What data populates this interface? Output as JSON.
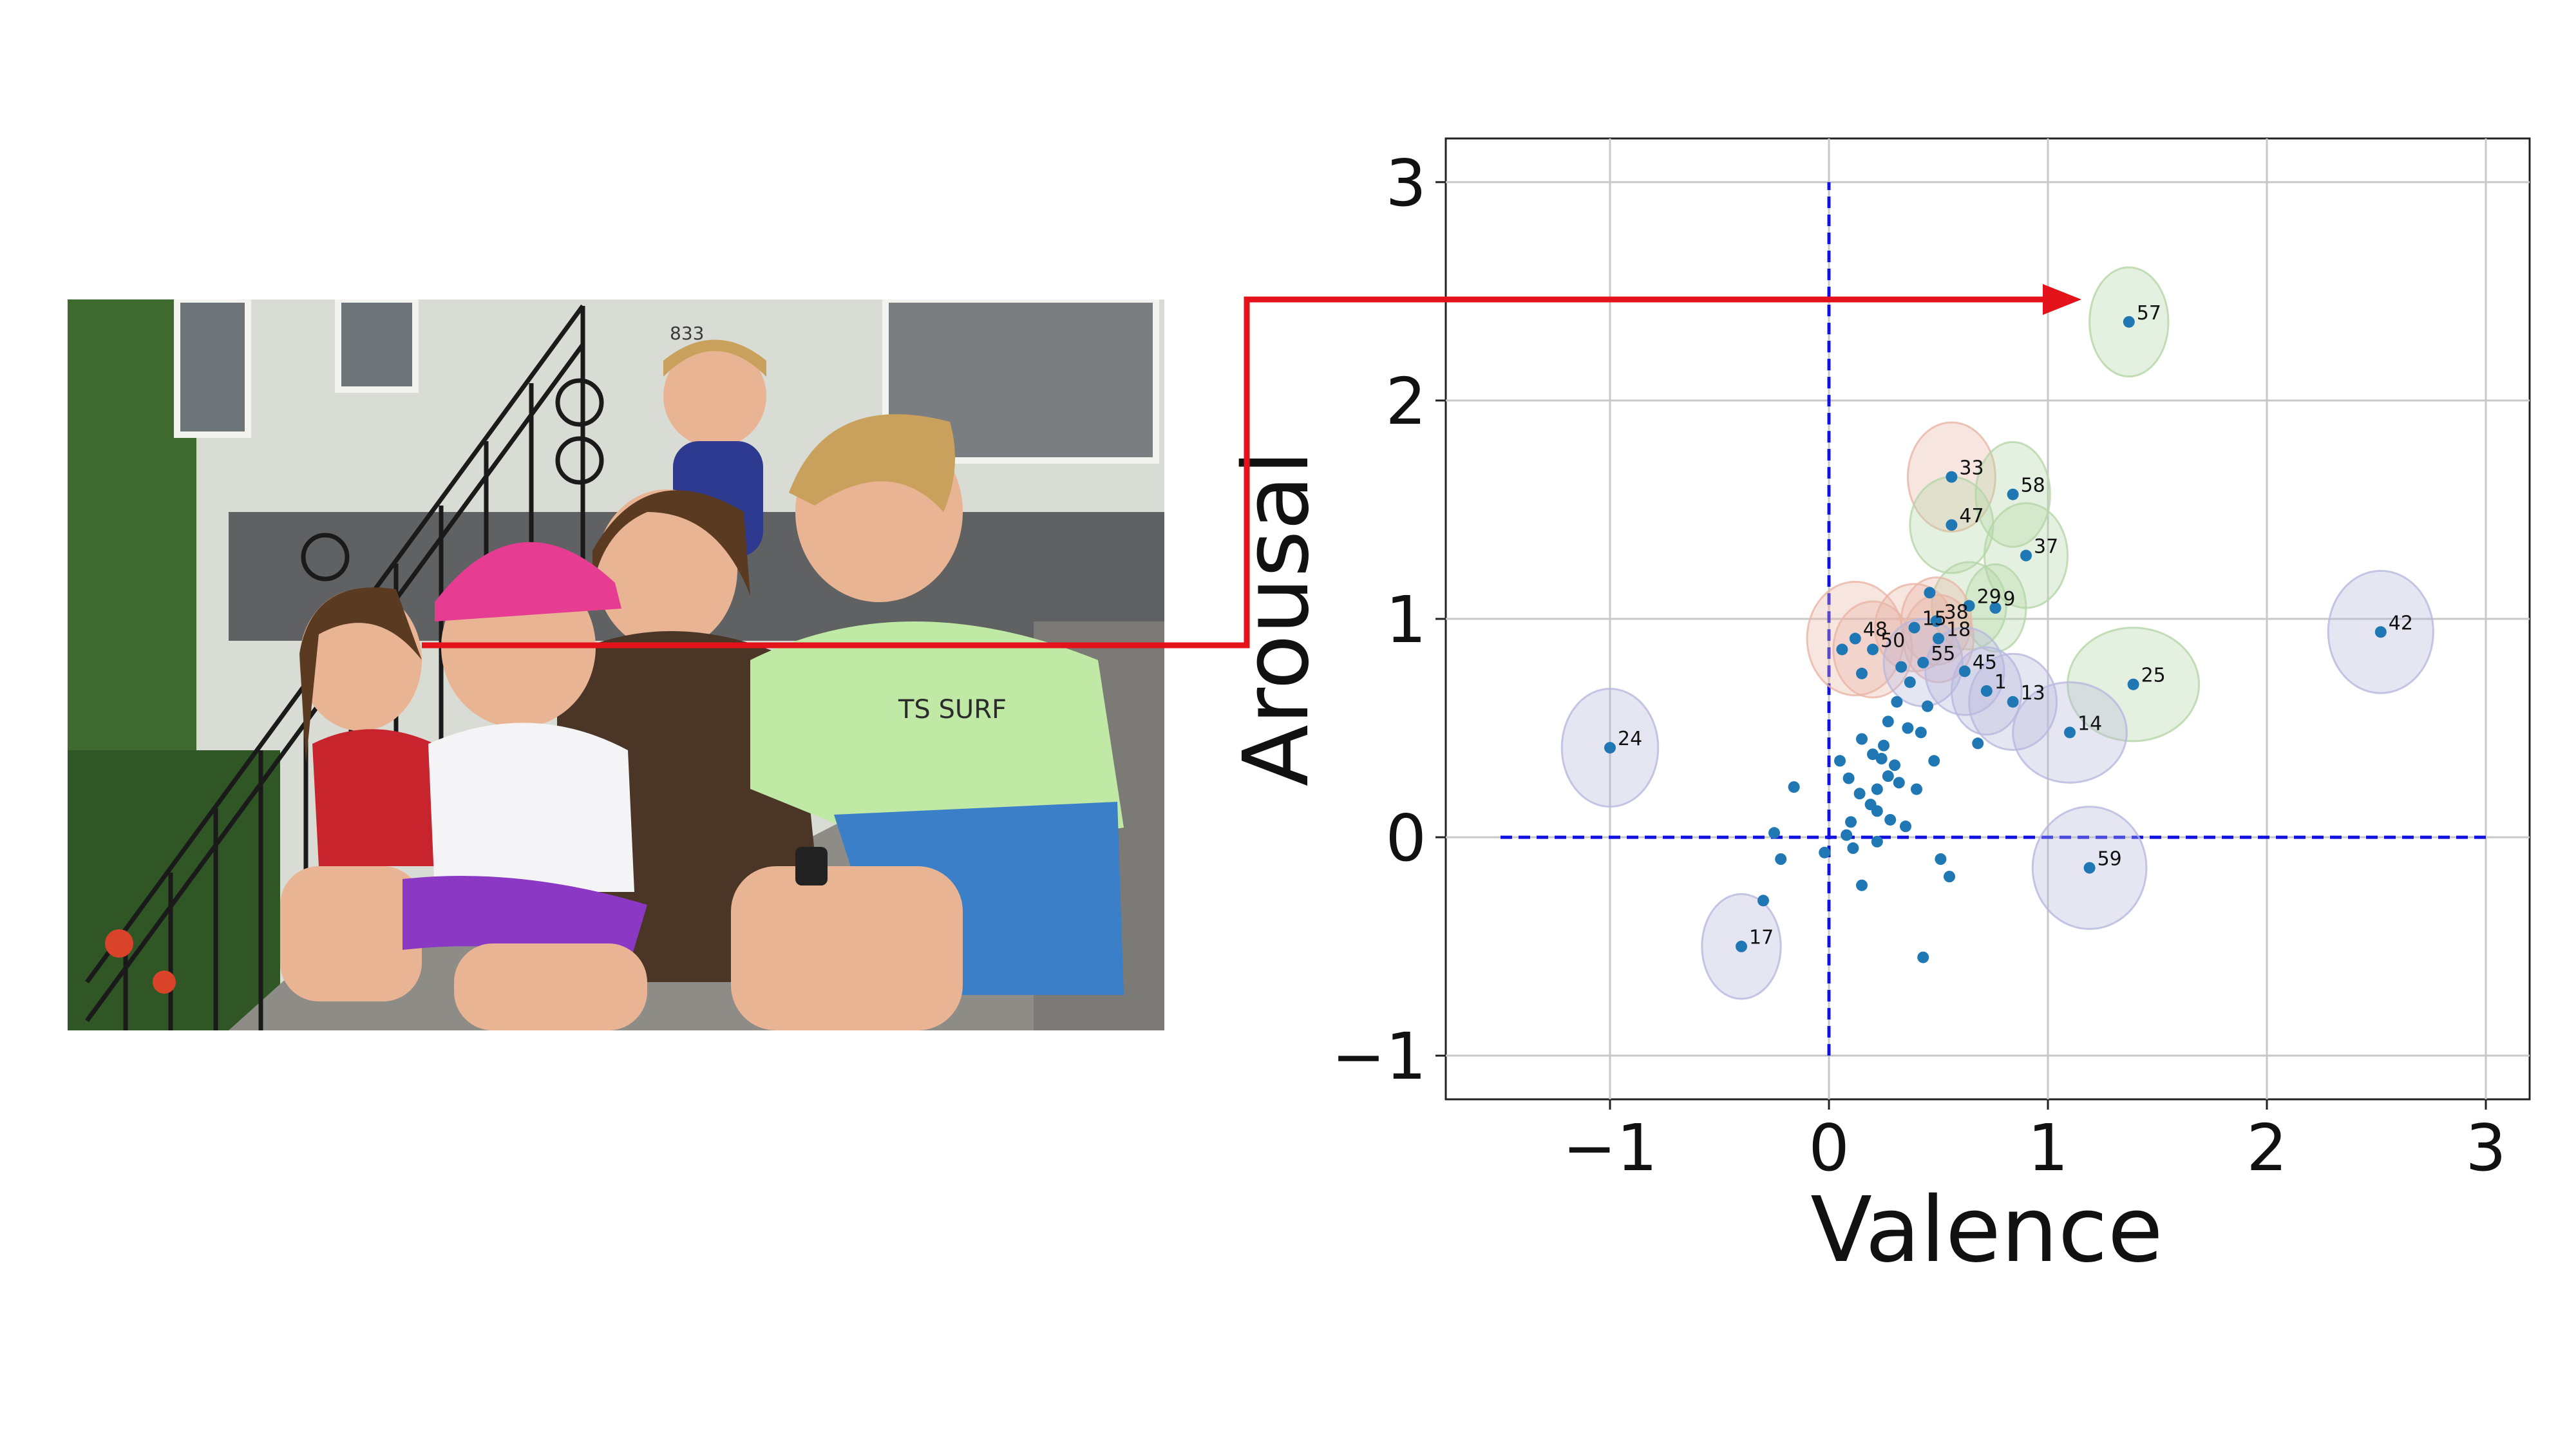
{
  "photo": {
    "description_icon": "family-photo-icon",
    "house_number": "833",
    "shirt_text": "TS SURF",
    "colors": {
      "wall": "#d9dcd4",
      "stone": "#5f6163",
      "step": "#8e8c87",
      "grass": "#3f6a2f",
      "girl_left_shirt": "#c7242e",
      "cap": "#e63d92",
      "woman_shirt": "#4b3527",
      "boy_shirt": "#bfe9a4",
      "shorts": "#3a7fc7",
      "purple_shorts": "#8b39c5",
      "skin": "#e9b493",
      "hair_dark": "#5a3a21",
      "hair_blond": "#c9a15c"
    }
  },
  "chart_data": {
    "type": "scatter",
    "xlabel": "Valence",
    "ylabel": "Arousal",
    "xlim": [
      -1.75,
      3.2
    ],
    "ylim": [
      -1.2,
      3.2
    ],
    "xticks": [
      -1,
      0,
      1,
      2,
      3
    ],
    "yticks": [
      -1,
      0,
      1,
      2,
      3
    ],
    "xtick_labels": [
      "−1",
      "0",
      "1",
      "2",
      "3"
    ],
    "ytick_labels": [
      "−1",
      "0",
      "1",
      "2",
      "3"
    ],
    "grid": true,
    "reference_lines": {
      "horizontal": {
        "y": 0,
        "x_range": [
          -1.5,
          3.0
        ],
        "color": "#1010e0"
      },
      "vertical": {
        "x": 0,
        "y_range": [
          -1.0,
          3.0
        ],
        "color": "#1010e0"
      }
    },
    "point_color": "#1f77b4",
    "labeled_points": [
      {
        "id": "57",
        "x": 1.37,
        "y": 2.36,
        "ellipse": {
          "rx": 0.18,
          "ry": 0.25,
          "color": "#b5d6a7"
        }
      },
      {
        "id": "33",
        "x": 0.56,
        "y": 1.65,
        "ellipse": {
          "rx": 0.2,
          "ry": 0.25,
          "color": "#e8b5a5"
        }
      },
      {
        "id": "58",
        "x": 0.84,
        "y": 1.57,
        "ellipse": {
          "rx": 0.17,
          "ry": 0.24,
          "color": "#b5d6a7"
        }
      },
      {
        "id": "47",
        "x": 0.56,
        "y": 1.43,
        "ellipse": {
          "rx": 0.19,
          "ry": 0.22,
          "color": "#b5d6a7"
        }
      },
      {
        "id": "37",
        "x": 0.9,
        "y": 1.29,
        "ellipse": {
          "rx": 0.19,
          "ry": 0.24,
          "color": "#b5d6a7"
        }
      },
      {
        "id": "29",
        "x": 0.64,
        "y": 1.06,
        "ellipse": {
          "rx": 0.17,
          "ry": 0.2,
          "color": "#b5d6a7"
        }
      },
      {
        "id": "9",
        "x": 0.76,
        "y": 1.05,
        "ellipse": {
          "rx": 0.14,
          "ry": 0.2,
          "color": "#b5d6a7"
        }
      },
      {
        "id": "38",
        "x": 0.49,
        "y": 0.99,
        "ellipse": {
          "rx": 0.16,
          "ry": 0.2,
          "color": "#e8b5a5"
        }
      },
      {
        "id": "15",
        "x": 0.39,
        "y": 0.96,
        "ellipse": {
          "rx": 0.18,
          "ry": 0.2,
          "color": "#e8b5a5"
        }
      },
      {
        "id": "18",
        "x": 0.5,
        "y": 0.91,
        "ellipse": {
          "rx": 0.16,
          "ry": 0.2,
          "color": "#e8b5a5"
        }
      },
      {
        "id": "48",
        "x": 0.12,
        "y": 0.91,
        "ellipse": {
          "rx": 0.22,
          "ry": 0.26,
          "color": "#e8b5a5"
        }
      },
      {
        "id": "50",
        "x": 0.2,
        "y": 0.86,
        "ellipse": {
          "rx": 0.18,
          "ry": 0.22,
          "color": "#e8b5a5"
        }
      },
      {
        "id": "55",
        "x": 0.43,
        "y": 0.8,
        "ellipse": {
          "rx": 0.18,
          "ry": 0.2,
          "color": "#b8b8de"
        }
      },
      {
        "id": "45",
        "x": 0.62,
        "y": 0.76,
        "ellipse": {
          "rx": 0.18,
          "ry": 0.2,
          "color": "#b8b8de"
        }
      },
      {
        "id": "1",
        "x": 0.72,
        "y": 0.67,
        "ellipse": {
          "rx": 0.16,
          "ry": 0.2,
          "color": "#b8b8de"
        }
      },
      {
        "id": "13",
        "x": 0.84,
        "y": 0.62,
        "ellipse": {
          "rx": 0.2,
          "ry": 0.22,
          "color": "#b8b8de"
        }
      },
      {
        "id": "25",
        "x": 1.39,
        "y": 0.7,
        "ellipse": {
          "rx": 0.3,
          "ry": 0.26,
          "color": "#b5d6a7"
        }
      },
      {
        "id": "14",
        "x": 1.1,
        "y": 0.48,
        "ellipse": {
          "rx": 0.26,
          "ry": 0.23,
          "color": "#b8b8de"
        }
      },
      {
        "id": "42",
        "x": 2.52,
        "y": 0.94,
        "ellipse": {
          "rx": 0.24,
          "ry": 0.28,
          "color": "#b8b8de"
        }
      },
      {
        "id": "24",
        "x": -1.0,
        "y": 0.41,
        "ellipse": {
          "rx": 0.22,
          "ry": 0.27,
          "color": "#b8b8de"
        }
      },
      {
        "id": "59",
        "x": 1.19,
        "y": -0.14,
        "ellipse": {
          "rx": 0.26,
          "ry": 0.28,
          "color": "#b8b8de"
        }
      },
      {
        "id": "17",
        "x": -0.4,
        "y": -0.5,
        "ellipse": {
          "rx": 0.18,
          "ry": 0.24,
          "color": "#b8b8de"
        }
      }
    ],
    "unlabeled_points": [
      {
        "x": 0.46,
        "y": 1.12
      },
      {
        "x": 0.33,
        "y": 0.78
      },
      {
        "x": 0.37,
        "y": 0.71
      },
      {
        "x": 0.31,
        "y": 0.62
      },
      {
        "x": 0.45,
        "y": 0.6
      },
      {
        "x": 0.27,
        "y": 0.53
      },
      {
        "x": 0.36,
        "y": 0.5
      },
      {
        "x": 0.42,
        "y": 0.48
      },
      {
        "x": 0.15,
        "y": 0.45
      },
      {
        "x": 0.25,
        "y": 0.42
      },
      {
        "x": 0.2,
        "y": 0.38
      },
      {
        "x": 0.24,
        "y": 0.36
      },
      {
        "x": 0.05,
        "y": 0.35
      },
      {
        "x": 0.3,
        "y": 0.33
      },
      {
        "x": 0.48,
        "y": 0.35
      },
      {
        "x": 0.68,
        "y": 0.43
      },
      {
        "x": 0.09,
        "y": 0.27
      },
      {
        "x": 0.27,
        "y": 0.28
      },
      {
        "x": 0.32,
        "y": 0.25
      },
      {
        "x": 0.22,
        "y": 0.22
      },
      {
        "x": 0.14,
        "y": 0.2
      },
      {
        "x": 0.4,
        "y": 0.22
      },
      {
        "x": -0.16,
        "y": 0.23
      },
      {
        "x": 0.19,
        "y": 0.15
      },
      {
        "x": 0.22,
        "y": 0.12
      },
      {
        "x": 0.1,
        "y": 0.07
      },
      {
        "x": 0.28,
        "y": 0.08
      },
      {
        "x": 0.35,
        "y": 0.05
      },
      {
        "x": -0.25,
        "y": 0.02
      },
      {
        "x": 0.08,
        "y": 0.01
      },
      {
        "x": 0.22,
        "y": -0.02
      },
      {
        "x": 0.11,
        "y": -0.05
      },
      {
        "x": -0.02,
        "y": -0.07
      },
      {
        "x": -0.22,
        "y": -0.1
      },
      {
        "x": 0.51,
        "y": -0.1
      },
      {
        "x": 0.55,
        "y": -0.18
      },
      {
        "x": 0.15,
        "y": -0.22
      },
      {
        "x": -0.3,
        "y": -0.29
      },
      {
        "x": 0.43,
        "y": -0.55
      },
      {
        "x": 0.15,
        "y": 0.75
      },
      {
        "x": 0.06,
        "y": 0.86
      }
    ]
  },
  "annotation": {
    "arrow_color": "#e4121a"
  }
}
